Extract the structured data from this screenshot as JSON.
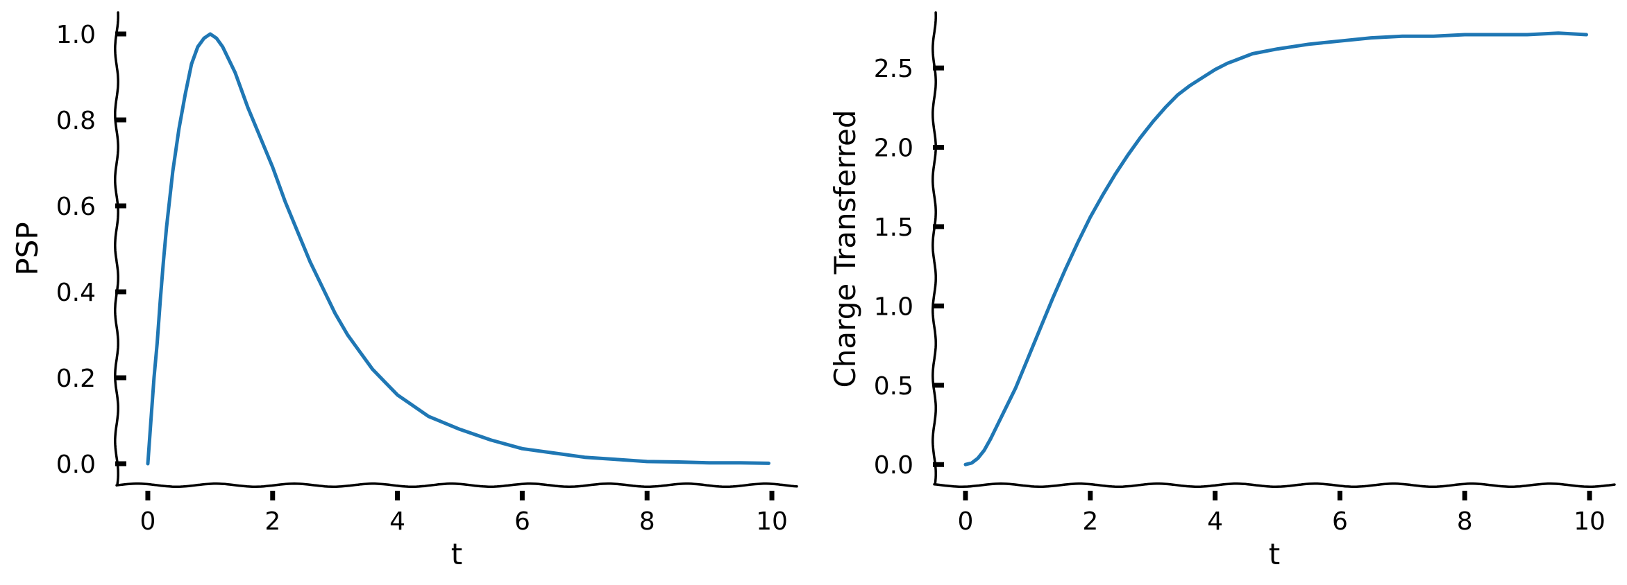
{
  "chart_data": [
    {
      "type": "line",
      "xlabel": "t",
      "ylabel": "PSP",
      "xlim": [
        -0.5,
        10.4
      ],
      "ylim": [
        -0.05,
        1.05
      ],
      "xticks": [
        "0",
        "2",
        "4",
        "6",
        "8",
        "10"
      ],
      "yticks": [
        "0.0",
        "0.2",
        "0.4",
        "0.6",
        "0.8",
        "1.0"
      ],
      "grid": false,
      "series": [
        {
          "color": "#1f77b4",
          "x": [
            0,
            0.05,
            0.1,
            0.15,
            0.2,
            0.25,
            0.3,
            0.4,
            0.5,
            0.6,
            0.7,
            0.8,
            0.9,
            1.0,
            1.1,
            1.2,
            1.3,
            1.4,
            1.5,
            1.6,
            1.8,
            2.0,
            2.2,
            2.4,
            2.6,
            2.8,
            3.0,
            3.2,
            3.4,
            3.6,
            3.8,
            4.0,
            4.2,
            4.5,
            5.0,
            5.5,
            6.0,
            6.5,
            7.0,
            7.5,
            8.0,
            8.5,
            9.0,
            9.5,
            9.95
          ],
          "y": [
            0.0,
            0.1,
            0.2,
            0.28,
            0.38,
            0.47,
            0.55,
            0.68,
            0.78,
            0.86,
            0.93,
            0.97,
            0.99,
            1.0,
            0.99,
            0.97,
            0.94,
            0.91,
            0.87,
            0.83,
            0.76,
            0.69,
            0.61,
            0.54,
            0.47,
            0.41,
            0.35,
            0.3,
            0.26,
            0.22,
            0.19,
            0.16,
            0.14,
            0.11,
            0.08,
            0.055,
            0.035,
            0.025,
            0.015,
            0.01,
            0.005,
            0.004,
            0.002,
            0.002,
            0.001
          ]
        }
      ]
    },
    {
      "type": "line",
      "xlabel": "t",
      "ylabel": "Charge Transferred",
      "xlim": [
        -0.5,
        10.4
      ],
      "ylim": [
        -0.13,
        2.85
      ],
      "xticks": [
        "0",
        "2",
        "4",
        "6",
        "8",
        "10"
      ],
      "yticks": [
        "0.0",
        "0.5",
        "1.0",
        "1.5",
        "2.0",
        "2.5"
      ],
      "grid": false,
      "series": [
        {
          "color": "#1f77b4",
          "x": [
            0,
            0.1,
            0.2,
            0.3,
            0.4,
            0.5,
            0.6,
            0.8,
            1.0,
            1.2,
            1.4,
            1.6,
            1.8,
            2.0,
            2.2,
            2.4,
            2.6,
            2.8,
            3.0,
            3.2,
            3.4,
            3.6,
            3.8,
            4.0,
            4.2,
            4.4,
            4.6,
            5.0,
            5.5,
            6.0,
            6.5,
            7.0,
            7.5,
            8.0,
            8.5,
            9.0,
            9.5,
            9.95
          ],
          "y": [
            0.0,
            0.01,
            0.04,
            0.09,
            0.16,
            0.24,
            0.32,
            0.48,
            0.67,
            0.86,
            1.05,
            1.23,
            1.4,
            1.56,
            1.7,
            1.83,
            1.95,
            2.06,
            2.16,
            2.25,
            2.33,
            2.39,
            2.44,
            2.49,
            2.53,
            2.56,
            2.59,
            2.62,
            2.65,
            2.67,
            2.69,
            2.7,
            2.7,
            2.71,
            2.71,
            2.71,
            2.72,
            2.71
          ]
        }
      ]
    }
  ]
}
